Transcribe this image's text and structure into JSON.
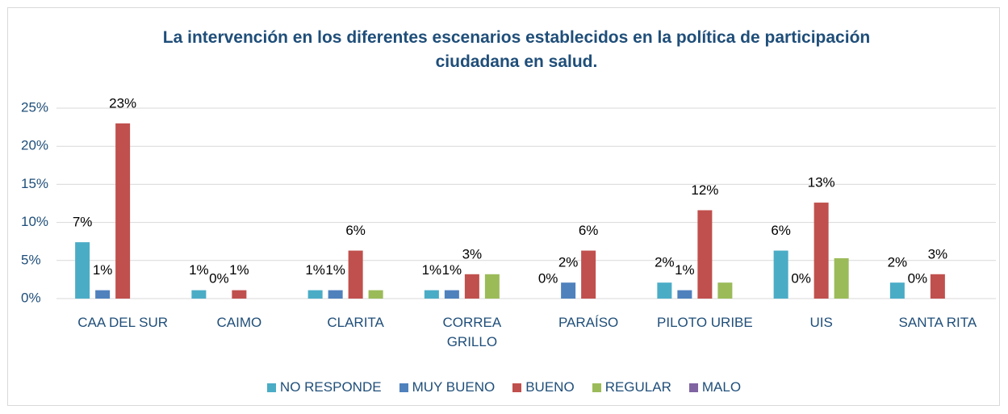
{
  "chart_data": {
    "type": "bar",
    "title": "La intervención en los diferentes escenarios establecidos en la política de participación ciudadana en salud.",
    "categories": [
      "CAA DEL SUR",
      "CAIMO",
      "CLARITA",
      "CORREA GRILLO",
      "PARAÍSO",
      "PILOTO URIBE",
      "UIS",
      "SANTA RITA"
    ],
    "series": [
      {
        "name": "NO RESPONDE",
        "color": "#4bacc6",
        "values": [
          7.4,
          1.1,
          1.1,
          1.1,
          0,
          2.1,
          6.3,
          2.1
        ],
        "value_labels": [
          "7%",
          "1%",
          "1%",
          "1%",
          "0%",
          "2%",
          "6%",
          "2%"
        ]
      },
      {
        "name": "MUY BUENO",
        "color": "#4f81bd",
        "values": [
          1.1,
          0,
          1.1,
          1.1,
          2.1,
          1.1,
          0,
          0
        ],
        "value_labels": [
          "1%",
          "0%",
          "1%",
          "1%",
          "2%",
          "1%",
          "0%",
          "0%"
        ]
      },
      {
        "name": "BUENO",
        "color": "#c0504d",
        "values": [
          23,
          1.1,
          6.3,
          3.2,
          6.3,
          11.6,
          12.6,
          3.2
        ],
        "value_labels": [
          "23%",
          "1%",
          "6%",
          "3%",
          "6%",
          "12%",
          "13%",
          "3%"
        ]
      },
      {
        "name": "REGULAR",
        "color": "#9bbb59",
        "values": [
          null,
          null,
          1.1,
          3.2,
          null,
          2.1,
          5.3,
          null
        ]
      },
      {
        "name": "MALO",
        "color": "#8064a2",
        "values": [
          null,
          null,
          null,
          null,
          null,
          null,
          null,
          null
        ]
      }
    ],
    "ylim": [
      0,
      25
    ],
    "yticks": [
      {
        "value": 0,
        "label": "0%"
      },
      {
        "value": 5,
        "label": "5%"
      },
      {
        "value": 10,
        "label": "10%"
      },
      {
        "value": 15,
        "label": "15%"
      },
      {
        "value": 20,
        "label": "20%"
      },
      {
        "value": 25,
        "label": "25%"
      }
    ],
    "grid": true,
    "legend": "bottom"
  }
}
